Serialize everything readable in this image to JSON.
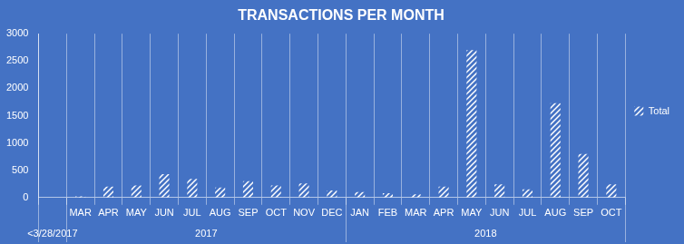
{
  "chart_data": {
    "type": "bar",
    "title": "TRANSACTIONS PER MONTH",
    "categories": [
      null,
      "MAR",
      "APR",
      "MAY",
      "JUN",
      "JUL",
      "AUG",
      "SEP",
      "OCT",
      "NOV",
      "DEC",
      "JAN",
      "FEB",
      "MAR",
      "APR",
      "MAY",
      "JUN",
      "JUL",
      "AUG",
      "SEP",
      "OCT"
    ],
    "groups": [
      {
        "label": "<3/28/2017",
        "span": 1
      },
      {
        "label": "2017",
        "span": 10
      },
      {
        "label": "2018",
        "span": 10
      }
    ],
    "series": [
      {
        "name": "Total",
        "color": "#ffffff",
        "values": [
          0,
          20,
          200,
          220,
          430,
          340,
          185,
          300,
          220,
          260,
          130,
          100,
          80,
          60,
          200,
          2700,
          240,
          150,
          1730,
          800,
          240
        ]
      }
    ],
    "ylim": [
      0,
      3000
    ],
    "yticks": [
      0,
      500,
      1000,
      1500,
      2000,
      2500,
      3000
    ],
    "grid": true,
    "legend": "right"
  }
}
